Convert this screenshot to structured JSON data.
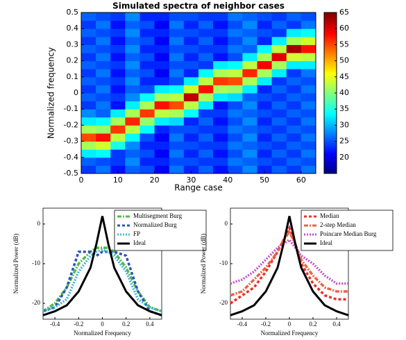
{
  "chart_data": [
    {
      "type": "heatmap",
      "title": "Simulated spectra of neighbor cases",
      "xlabel": "Range case",
      "ylabel": "Normalized frequency",
      "xlim": [
        0,
        64
      ],
      "ylim": [
        -0.5,
        0.5
      ],
      "xticks": [
        0,
        10,
        20,
        30,
        40,
        50,
        60
      ],
      "yticks": [
        -0.5,
        -0.4,
        -0.3,
        -0.2,
        -0.1,
        0,
        0.1,
        0.2,
        0.3,
        0.4,
        0.5
      ],
      "colorbar": {
        "lim": [
          15,
          65
        ],
        "ticks": [
          20,
          25,
          30,
          35,
          40,
          45,
          50,
          55,
          60,
          65
        ]
      },
      "values": [
        [
          24,
          27,
          22,
          26,
          25,
          21,
          27,
          23,
          26,
          22,
          25,
          28,
          23,
          26,
          24,
          27
        ],
        [
          26,
          25,
          24,
          28,
          23,
          23,
          25,
          25,
          24,
          24,
          27,
          26,
          25,
          24,
          26,
          25
        ],
        [
          33,
          34,
          24,
          26,
          25,
          21,
          27,
          23,
          26,
          22,
          25,
          28,
          23,
          26,
          24,
          27
        ],
        [
          42,
          44,
          35,
          28,
          23,
          23,
          25,
          25,
          24,
          24,
          27,
          26,
          25,
          24,
          26,
          25
        ],
        [
          55,
          58,
          43,
          34,
          25,
          21,
          27,
          23,
          26,
          22,
          25,
          28,
          23,
          26,
          24,
          27
        ],
        [
          42,
          41,
          56,
          43,
          34,
          23,
          25,
          25,
          24,
          24,
          27,
          26,
          25,
          24,
          26,
          25
        ],
        [
          33,
          34,
          42,
          57,
          41,
          33,
          32,
          23,
          26,
          22,
          25,
          28,
          23,
          26,
          24,
          27
        ],
        [
          28,
          26,
          33,
          42,
          56,
          43,
          42,
          34,
          24,
          24,
          27,
          26,
          25,
          24,
          26,
          25
        ],
        [
          24,
          27,
          22,
          33,
          42,
          58,
          55,
          43,
          33,
          22,
          25,
          28,
          23,
          26,
          24,
          27
        ],
        [
          26,
          25,
          24,
          28,
          34,
          42,
          43,
          62,
          42,
          33,
          32,
          26,
          25,
          24,
          26,
          25
        ],
        [
          24,
          27,
          22,
          26,
          25,
          33,
          34,
          44,
          58,
          42,
          41,
          33,
          23,
          26,
          24,
          27
        ],
        [
          26,
          25,
          24,
          28,
          23,
          23,
          25,
          33,
          43,
          56,
          55,
          42,
          33,
          24,
          26,
          25
        ],
        [
          24,
          27,
          22,
          26,
          25,
          21,
          27,
          23,
          34,
          42,
          43,
          57,
          42,
          33,
          24,
          27
        ],
        [
          26,
          25,
          24,
          28,
          23,
          23,
          25,
          25,
          24,
          33,
          34,
          43,
          59,
          42,
          33,
          33
        ],
        [
          24,
          27,
          22,
          26,
          25,
          21,
          27,
          23,
          26,
          22,
          25,
          33,
          42,
          60,
          44,
          43
        ],
        [
          26,
          25,
          24,
          28,
          23,
          23,
          25,
          25,
          24,
          24,
          27,
          26,
          34,
          43,
          63,
          58
        ],
        [
          24,
          27,
          22,
          26,
          25,
          21,
          27,
          23,
          26,
          22,
          25,
          28,
          23,
          33,
          42,
          44
        ],
        [
          26,
          25,
          24,
          28,
          23,
          23,
          25,
          25,
          24,
          24,
          27,
          26,
          25,
          24,
          33,
          34
        ],
        [
          24,
          27,
          22,
          26,
          25,
          21,
          27,
          23,
          26,
          22,
          25,
          28,
          23,
          26,
          24,
          27
        ],
        [
          26,
          25,
          24,
          28,
          23,
          23,
          25,
          25,
          24,
          24,
          27,
          26,
          25,
          24,
          26,
          25
        ]
      ]
    },
    {
      "type": "line",
      "xlabel": "Normalized Frequency",
      "ylabel": "Normalized Power (dB)",
      "xlim": [
        -0.5,
        0.5
      ],
      "ylim": [
        -24,
        4
      ],
      "xticks": [
        -0.4,
        -0.2,
        0,
        0.2,
        0.4
      ],
      "yticks": [
        -20,
        -10,
        0
      ],
      "x": [
        -0.5,
        -0.4,
        -0.3,
        -0.2,
        -0.1,
        -0.05,
        0,
        0.05,
        0.1,
        0.2,
        0.3,
        0.4,
        0.5
      ],
      "series": [
        {
          "name": "Multisegment Burg",
          "color": "#55b848",
          "dash": "6 2 2 2",
          "values": [
            -22,
            -20,
            -16,
            -10,
            -7,
            -6,
            -6,
            -6,
            -7,
            -11,
            -17,
            -21,
            -22
          ]
        },
        {
          "name": "Normalized Burg",
          "color": "#2a55b8",
          "dash": "4 3",
          "values": [
            -22,
            -21,
            -16,
            -7,
            -7,
            -8,
            -7,
            -7,
            -7,
            -8,
            -17,
            -22,
            -23
          ]
        },
        {
          "name": "FP",
          "color": "#3fb8d8",
          "dash": "2 2",
          "values": [
            -22,
            -21,
            -19,
            -12,
            -8,
            -7,
            -6.5,
            -7,
            -8,
            -12,
            -19,
            -21,
            -22
          ]
        },
        {
          "name": "Ideal",
          "color": "#000000",
          "dash": "none",
          "values": [
            -23,
            -22,
            -20.5,
            -17,
            -11,
            -5,
            2,
            -5,
            -11,
            -17,
            -20.5,
            -22,
            -23
          ]
        }
      ]
    },
    {
      "type": "line",
      "xlabel": "Normalized Frequency",
      "ylabel": "Normalized Power (dB)",
      "xlim": [
        -0.5,
        0.5
      ],
      "ylim": [
        -24,
        4
      ],
      "xticks": [
        -0.4,
        -0.2,
        0,
        0.2,
        0.4
      ],
      "yticks": [
        -20,
        -10,
        0
      ],
      "x": [
        -0.5,
        -0.4,
        -0.3,
        -0.2,
        -0.1,
        -0.05,
        0,
        0.05,
        0.1,
        0.2,
        0.3,
        0.4,
        0.5
      ],
      "series": [
        {
          "name": "Median",
          "color": "#e8302a",
          "dash": "4 3",
          "values": [
            -20,
            -18,
            -16,
            -12,
            -7,
            -4,
            -1,
            -5,
            -10,
            -15,
            -18,
            -19,
            -19
          ]
        },
        {
          "name": "2-step Median",
          "color": "#f06040",
          "dash": "6 2 2 2",
          "values": [
            -18,
            -17,
            -14,
            -11,
            -7,
            -4,
            -2,
            -5,
            -9,
            -13,
            -16,
            -17,
            -17
          ]
        },
        {
          "name": "Poincare Median Burg",
          "color": "#c050c8",
          "dash": "2 2",
          "values": [
            -15,
            -14,
            -12,
            -9,
            -6,
            -5,
            -4,
            -6,
            -8,
            -10,
            -13,
            -15,
            -15
          ]
        },
        {
          "name": "Ideal",
          "color": "#000000",
          "dash": "none",
          "values": [
            -23,
            -22,
            -20.5,
            -17,
            -11,
            -5,
            2,
            -5,
            -11,
            -17,
            -20.5,
            -22,
            -23
          ]
        }
      ]
    }
  ]
}
